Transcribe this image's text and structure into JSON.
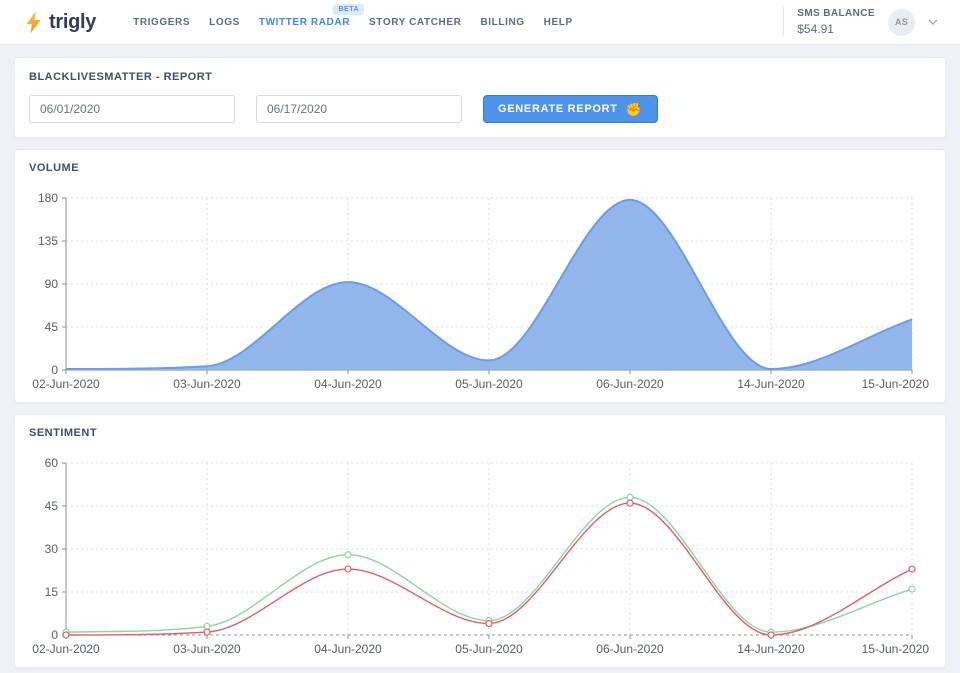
{
  "header": {
    "brand": {
      "name": "trigly",
      "logo": "lightning-bolt"
    },
    "nav": {
      "items": [
        {
          "label": "TRIGGERS"
        },
        {
          "label": "LOGS"
        },
        {
          "label": "TWITTER RADAR",
          "active": true,
          "badge": "BETA"
        },
        {
          "label": "STORY CATCHER"
        },
        {
          "label": "BILLING"
        },
        {
          "label": "HELP"
        }
      ]
    },
    "sms_balance": {
      "label": "SMS BALANCE",
      "value": "$54.91"
    },
    "user": {
      "initials": "AS"
    }
  },
  "report": {
    "title": "BLACKLIVESMATTER - REPORT",
    "date_from": "06/01/2020",
    "date_to": "06/17/2020",
    "generate_button": {
      "label": "GENERATE REPORT",
      "emoji": "✊"
    }
  },
  "colors": {
    "brand_text": "#2E3D5A",
    "bolt_orange": "#F28C18",
    "bolt_yellow": "#F9C846",
    "nav_active_blue": "#3E87E8",
    "button_blue": "#4C93E9",
    "card_title": "#3C5069"
  },
  "chart_data": [
    {
      "type": "area",
      "title": "VOLUME",
      "x": [
        "02-Jun-2020",
        "03-Jun-2020",
        "04-Jun-2020",
        "05-Jun-2020",
        "06-Jun-2020",
        "14-Jun-2020",
        "15-Jun-2020"
      ],
      "series": [
        {
          "name": "volume",
          "color": "#6D9CE3",
          "fill": "#8AB0E9",
          "values": [
            1,
            4,
            92,
            10,
            178,
            1,
            53
          ]
        }
      ],
      "ylim": [
        0,
        180
      ],
      "yticks": [
        0,
        45,
        90,
        135,
        180
      ],
      "grid": true,
      "legend": "none",
      "markers": false,
      "baseline": "solid"
    },
    {
      "type": "line",
      "title": "SENTIMENT",
      "x": [
        "02-Jun-2020",
        "03-Jun-2020",
        "04-Jun-2020",
        "05-Jun-2020",
        "06-Jun-2020",
        "14-Jun-2020",
        "15-Jun-2020"
      ],
      "series": [
        {
          "name": "green",
          "color": "#8FD3A4",
          "values": [
            1,
            3,
            28,
            5,
            48,
            1,
            16
          ]
        },
        {
          "name": "red",
          "color": "#E25C66",
          "values": [
            0,
            1,
            23,
            4,
            46,
            0,
            23
          ]
        }
      ],
      "ylim": [
        0,
        60
      ],
      "yticks": [
        0,
        15,
        30,
        45,
        60
      ],
      "grid": true,
      "legend": "none",
      "markers": "open-circle",
      "baseline": "dashed"
    }
  ]
}
